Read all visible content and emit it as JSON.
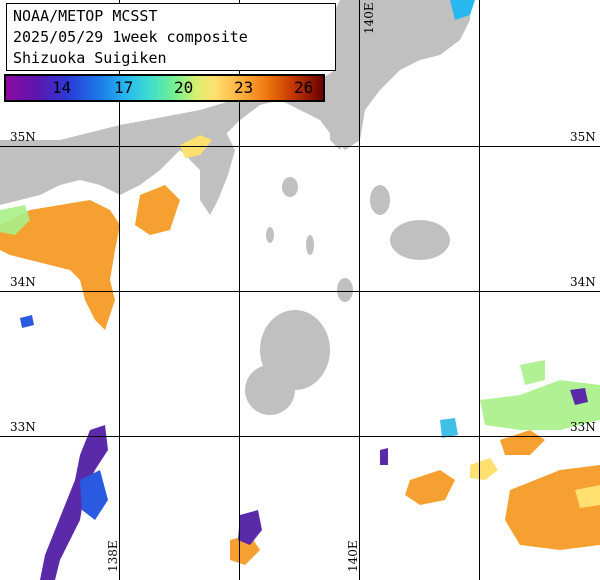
{
  "title": {
    "line1": "NOAA/METOP MCSST",
    "line2": "2025/05/29 1week composite",
    "line3": "Shizuoka Suigiken"
  },
  "colorbar": {
    "labels": [
      "14",
      "17",
      "20",
      "23",
      "26"
    ]
  },
  "lat_labels": {
    "n35": "35N",
    "n34": "34N",
    "n33": "33N"
  },
  "lon_labels": {
    "e138": "138E",
    "e140": "140E"
  },
  "colors": {
    "land": "#c0c0c0",
    "grid": "#000000",
    "warm": "#f5a030",
    "cold": "#5a2aa8"
  }
}
